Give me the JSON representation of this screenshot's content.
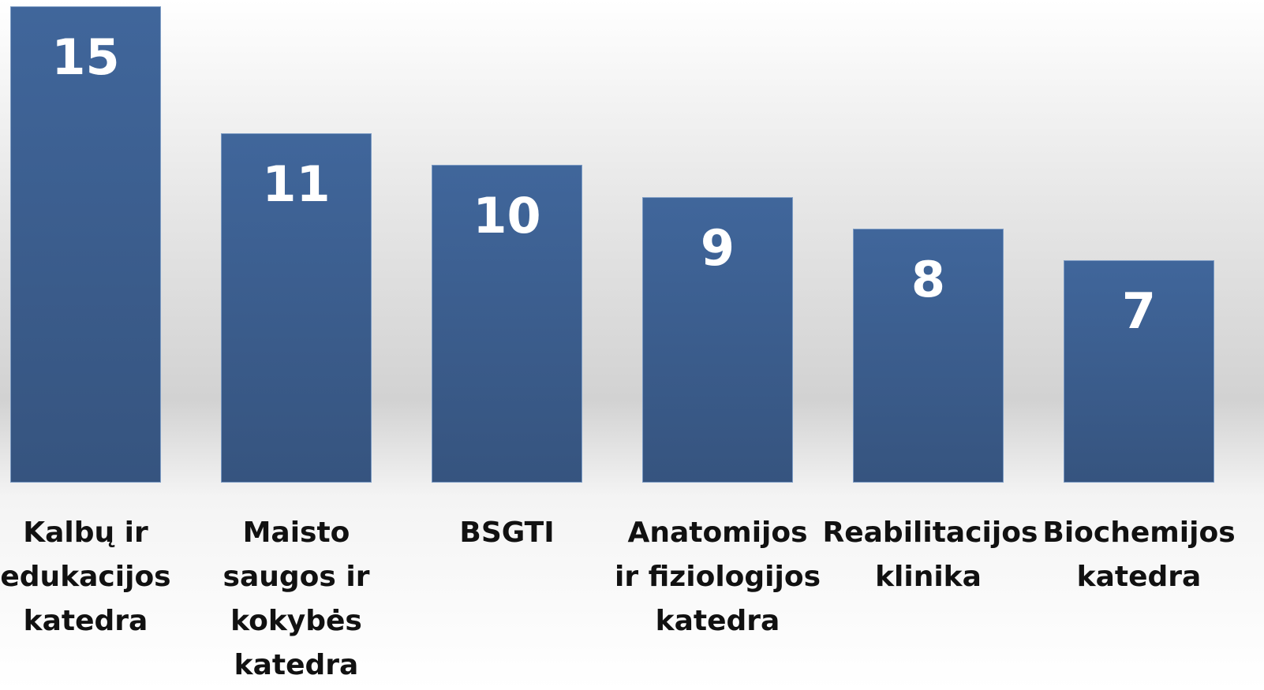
{
  "chart_data": {
    "type": "bar",
    "categories": [
      "Kalbų ir edukacijos katedra",
      "Maisto saugos ir kokybės katedra",
      "BSGTI",
      "Anatomijos ir fiziologijos katedra",
      "Reabilitacijos klinika",
      "Biochemijos katedra"
    ],
    "values": [
      15,
      11,
      10,
      9,
      8,
      7
    ],
    "color": "#3d6396",
    "ylim": [
      0,
      15
    ]
  }
}
